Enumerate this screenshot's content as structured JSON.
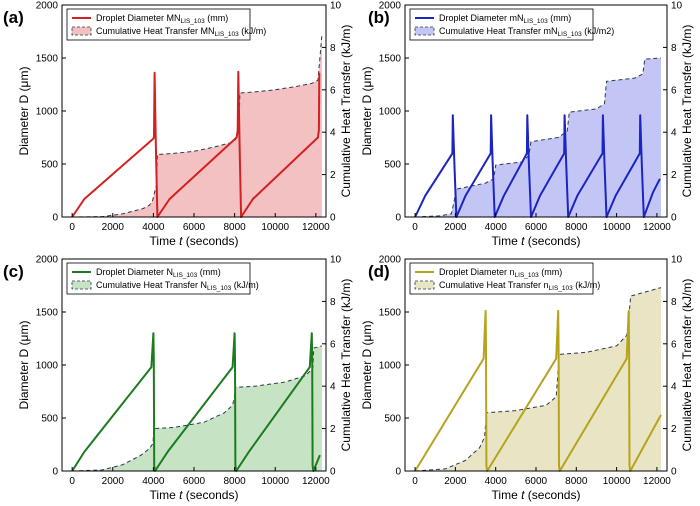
{
  "chart_data": [
    {
      "type": "line",
      "panel_label": "(a)",
      "color": "#d42020",
      "fill_color": "#f3c1c1",
      "xlabel_main": "Time ",
      "xlabel_var": "t",
      "xlabel_unit": " (seconds)",
      "ylabel_left": "Diameter D (μm)",
      "ylabel_right": "Cumulative Heat Transfer (kJ/m)",
      "xlim": [
        -500,
        12500
      ],
      "ylim_left": [
        0,
        2000
      ],
      "ylim_right": [
        0,
        10
      ],
      "xticks": [
        0,
        2000,
        4000,
        6000,
        8000,
        10000,
        12000
      ],
      "yticks_left": [
        0,
        500,
        1000,
        1500,
        2000
      ],
      "yticks_right": [
        0,
        2,
        4,
        6,
        8,
        10
      ],
      "legend": {
        "diameter": {
          "prefix": "Droplet Diameter MN",
          "sub": "LIS_103",
          "suffix": " (mm)"
        },
        "heat": {
          "prefix": "Cumulative Heat Transfer MN",
          "sub": "LIS_103",
          "suffix": " (kJ/m)"
        }
      },
      "diameter_series": {
        "name": "Droplet Diameter",
        "x": [
          0,
          600,
          4000,
          4030,
          4060,
          4120,
          4200,
          4800,
          8100,
          8150,
          8180,
          8240,
          8320,
          8900,
          12100,
          12150,
          12170
        ],
        "y": [
          0,
          170,
          740,
          760,
          1360,
          700,
          0,
          170,
          750,
          810,
          1370,
          720,
          0,
          170,
          750,
          820,
          1360
        ]
      },
      "heat_series": {
        "name": "Cumulative Heat Transfer",
        "x": [
          0,
          1500,
          2500,
          3500,
          3800,
          3950,
          4150,
          4200,
          5000,
          6000,
          7000,
          7800,
          8050,
          8220,
          8260,
          9000,
          10000,
          11000,
          11800,
          12100,
          12200,
          12300
        ],
        "y": [
          0,
          0.02,
          0.15,
          0.4,
          0.55,
          0.75,
          1.5,
          2.95,
          3.0,
          3.1,
          3.3,
          3.5,
          3.65,
          4.5,
          5.85,
          5.9,
          6.0,
          6.15,
          6.3,
          6.45,
          7.5,
          8.6
        ]
      }
    },
    {
      "type": "line",
      "panel_label": "(b)",
      "color": "#1c24c2",
      "fill_color": "#c3c6f5",
      "xlabel_main": "Time ",
      "xlabel_var": "t",
      "xlabel_unit": " (seconds)",
      "ylabel_left": "Diameter D (μm)",
      "ylabel_right": "Cumulative Heat Transfer (kJ/m)",
      "xlim": [
        -500,
        12500
      ],
      "ylim_left": [
        0,
        2000
      ],
      "ylim_right": [
        0,
        10
      ],
      "xticks": [
        0,
        2000,
        4000,
        6000,
        8000,
        10000,
        12000
      ],
      "yticks_left": [
        0,
        500,
        1000,
        1500,
        2000
      ],
      "yticks_right": [
        0,
        2,
        4,
        6,
        8,
        10
      ],
      "legend": {
        "diameter": {
          "prefix": "Droplet Diameter mN",
          "sub": "LIS_103",
          "suffix": " (mm)"
        },
        "heat": {
          "prefix": "Cumulative Heat Transfer mN",
          "sub": "LIS_103",
          "suffix": " (kJ/m2)"
        }
      },
      "diameter_series": {
        "name": "Droplet Diameter",
        "x": [
          0,
          500,
          1850,
          1870,
          1950,
          2050,
          2500,
          3750,
          3770,
          3850,
          3950,
          4400,
          5550,
          5570,
          5650,
          5750,
          6200,
          7400,
          7420,
          7500,
          7600,
          8050,
          9300,
          9320,
          9400,
          9500,
          9950,
          11150,
          11170,
          11250,
          11350,
          11800,
          12150
        ],
        "y": [
          0,
          200,
          600,
          960,
          500,
          0,
          200,
          600,
          960,
          500,
          0,
          200,
          600,
          960,
          500,
          0,
          200,
          600,
          960,
          500,
          0,
          200,
          600,
          960,
          500,
          0,
          200,
          600,
          960,
          500,
          0,
          230,
          360
        ]
      },
      "heat_series": {
        "name": "Cumulative Heat Transfer",
        "x": [
          0,
          1200,
          1800,
          1950,
          2000,
          3500,
          3900,
          4000,
          5300,
          5650,
          5750,
          7100,
          7550,
          7650,
          9000,
          9400,
          9500,
          10900,
          11300,
          11400,
          12200
        ],
        "y": [
          0,
          0.05,
          0.15,
          0.8,
          1.3,
          1.6,
          1.8,
          2.45,
          2.6,
          2.9,
          3.55,
          3.75,
          4.05,
          4.95,
          5.1,
          5.35,
          6.4,
          6.55,
          6.75,
          7.45,
          7.5
        ]
      }
    },
    {
      "type": "line",
      "panel_label": "(c)",
      "color": "#1c7a20",
      "fill_color": "#c6e4c3",
      "xlabel_main": "Time ",
      "xlabel_var": "t",
      "xlabel_unit": " (seconds)",
      "ylabel_left": "Diameter D (μm)",
      "ylabel_right": "Cumulative Heat Transfer (kJ/m)",
      "xlim": [
        -500,
        12500
      ],
      "ylim_left": [
        0,
        2000
      ],
      "ylim_right": [
        0,
        10
      ],
      "xticks": [
        0,
        2000,
        4000,
        6000,
        8000,
        10000,
        12000
      ],
      "yticks_left": [
        0,
        500,
        1000,
        1500,
        2000
      ],
      "yticks_right": [
        0,
        2,
        4,
        6,
        8,
        10
      ],
      "legend": {
        "diameter": {
          "prefix": "Droplet Diameter N",
          "sub": "LIS_103",
          "suffix": " (mm)"
        },
        "heat": {
          "prefix": "Cumulative Heat Transfer N",
          "sub": "LIS_103",
          "suffix": " (kJ/m)"
        }
      },
      "diameter_series": {
        "name": "Droplet Diameter",
        "x": [
          0,
          600,
          3900,
          4000,
          4020,
          4040,
          4080,
          4700,
          7900,
          8000,
          8020,
          8040,
          8080,
          8700,
          11700,
          11800,
          11820,
          11840,
          11880,
          12200
        ],
        "y": [
          0,
          180,
          980,
          1300,
          1050,
          50,
          0,
          180,
          980,
          1300,
          1050,
          50,
          0,
          180,
          980,
          1300,
          1050,
          50,
          0,
          150
        ]
      },
      "heat_series": {
        "name": "Cumulative Heat Transfer",
        "x": [
          0,
          1500,
          2500,
          3400,
          3800,
          3980,
          4020,
          5000,
          6500,
          7500,
          7900,
          8000,
          8040,
          9000,
          10500,
          11500,
          11850,
          11900,
          12300
        ],
        "y": [
          0,
          0.05,
          0.3,
          0.75,
          1.05,
          1.3,
          2.0,
          2.05,
          2.3,
          2.75,
          3.1,
          3.55,
          3.95,
          4.0,
          4.2,
          4.5,
          4.85,
          5.8,
          5.9
        ]
      }
    },
    {
      "type": "line",
      "panel_label": "(d)",
      "color": "#b5a31c",
      "fill_color": "#e9e5c4",
      "xlabel_main": "Time ",
      "xlabel_var": "t",
      "xlabel_unit": " (seconds)",
      "ylabel_left": "Diameter D (μm)",
      "ylabel_right": "Cumulative Heat Transfer (kJ/m)",
      "xlim": [
        -500,
        12500
      ],
      "ylim_left": [
        0,
        2000
      ],
      "ylim_right": [
        0,
        10
      ],
      "xticks": [
        0,
        2000,
        4000,
        6000,
        8000,
        10000,
        12000
      ],
      "yticks_left": [
        0,
        500,
        1000,
        1500,
        2000
      ],
      "yticks_right": [
        0,
        2,
        4,
        6,
        8,
        10
      ],
      "legend": {
        "diameter": {
          "prefix": "Droplet Diameter n",
          "sub": "LIS_103",
          "suffix": " (mm)"
        },
        "heat": {
          "prefix": "Cumulative Heat Transfer n",
          "sub": "LIS_103",
          "suffix": " (kJ/m)"
        }
      },
      "diameter_series": {
        "name": "Droplet Diameter",
        "x": [
          0,
          3400,
          3500,
          3520,
          3540,
          3580,
          7000,
          7100,
          7120,
          7140,
          7180,
          10500,
          10600,
          10620,
          10640,
          10680,
          12200
        ],
        "y": [
          0,
          1060,
          1510,
          1150,
          50,
          0,
          1060,
          1510,
          1150,
          50,
          0,
          1060,
          1510,
          1150,
          50,
          0,
          530
        ]
      },
      "heat_series": {
        "name": "Cumulative Heat Transfer",
        "x": [
          0,
          1500,
          2500,
          3200,
          3450,
          3550,
          5000,
          6500,
          7000,
          7150,
          8500,
          10000,
          10500,
          10600,
          10700,
          12200
        ],
        "y": [
          0,
          0.1,
          0.5,
          1.1,
          1.6,
          2.75,
          2.85,
          3.1,
          3.5,
          5.5,
          5.6,
          5.9,
          6.4,
          7.2,
          8.25,
          8.65
        ]
      }
    }
  ]
}
